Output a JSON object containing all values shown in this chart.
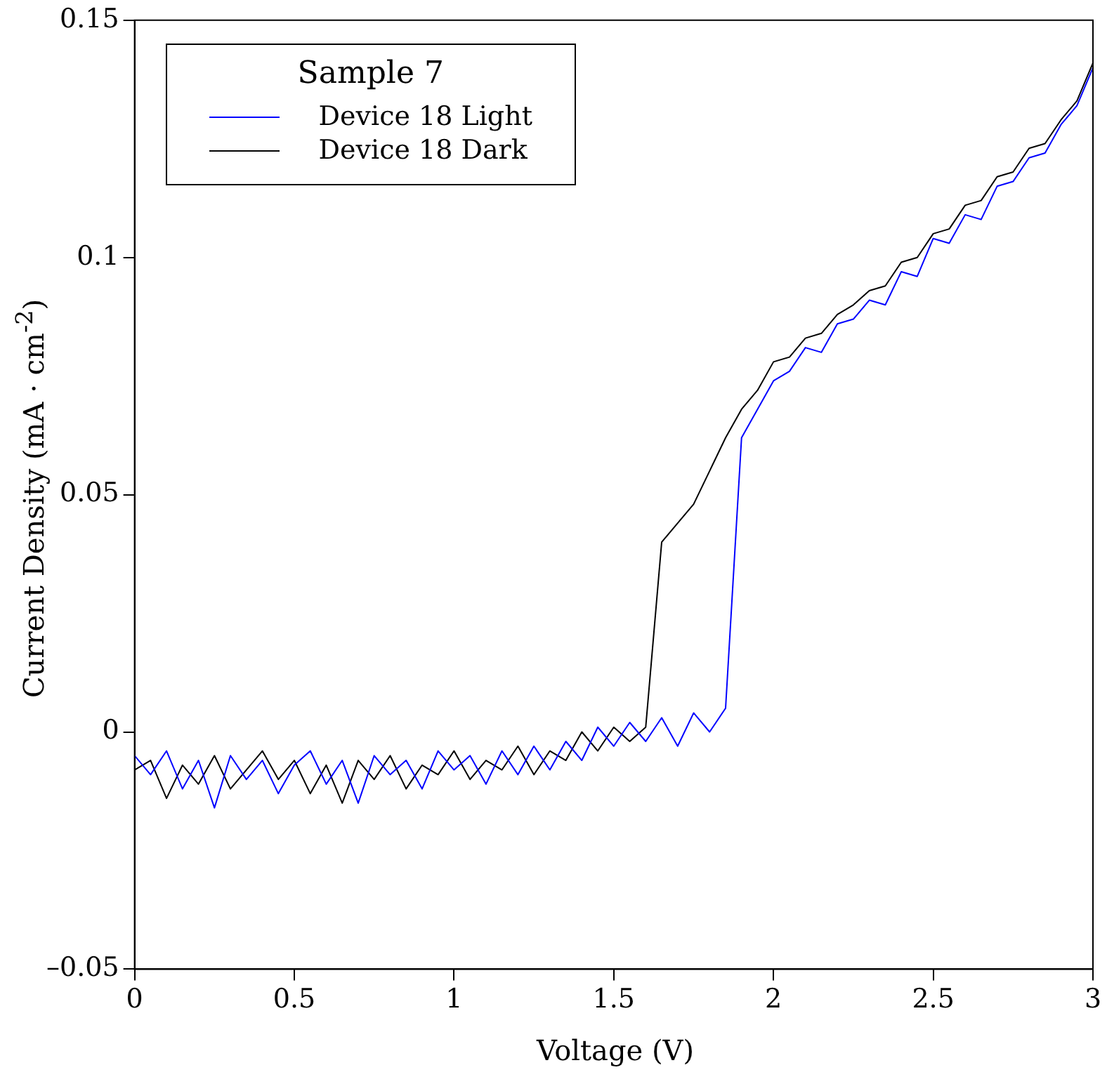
{
  "chart_data": {
    "type": "line",
    "xlabel": "Voltage (V)",
    "ylabel": "Current Density (mA · cm$^{-2}$)",
    "legend_title": "Sample 7",
    "legend": "top left",
    "grid": false,
    "marker": "none",
    "line_style": "solid",
    "xlim": [
      0,
      3
    ],
    "xticks": [
      0,
      0.5,
      1,
      1.5,
      2,
      2.5,
      3
    ],
    "ylim": [
      -0.05,
      0.15
    ],
    "yticks": [
      {
        "value": -0.05,
        "label": "–0.05"
      },
      0,
      0.05,
      0.1,
      0.15
    ],
    "x": [
      0,
      0.05,
      0.1,
      0.15,
      0.2,
      0.25,
      0.3,
      0.35,
      0.4,
      0.45,
      0.5,
      0.55,
      0.6,
      0.65,
      0.7,
      0.75,
      0.8,
      0.85,
      0.9,
      0.95,
      1,
      1.05,
      1.1,
      1.15,
      1.2,
      1.25,
      1.3,
      1.35,
      1.4,
      1.45,
      1.5,
      1.55,
      1.6,
      1.65,
      1.7,
      1.75,
      1.8,
      1.85,
      1.9,
      1.95,
      2,
      2.05,
      2.1,
      2.15,
      2.2,
      2.25,
      2.3,
      2.35,
      2.4,
      2.45,
      2.5,
      2.55,
      2.6,
      2.65,
      2.7,
      2.75,
      2.8,
      2.85,
      2.9,
      2.95,
      3
    ],
    "series": [
      {
        "name": "Device 18 Light",
        "color": "#0000ff",
        "values": [
          -0.005,
          -0.009,
          -0.004,
          -0.012,
          -0.006,
          -0.016,
          -0.005,
          -0.01,
          -0.006,
          -0.013,
          -0.007,
          -0.004,
          -0.011,
          -0.006,
          -0.015,
          -0.005,
          -0.009,
          -0.006,
          -0.012,
          -0.004,
          -0.008,
          -0.005,
          -0.011,
          -0.004,
          -0.009,
          -0.003,
          -0.008,
          -0.002,
          -0.006,
          0.001,
          -0.003,
          0.002,
          -0.002,
          0.003,
          -0.003,
          0.004,
          0,
          0.005,
          0.062,
          0.068,
          0.074,
          0.076,
          0.081,
          0.08,
          0.086,
          0.087,
          0.091,
          0.09,
          0.097,
          0.096,
          0.104,
          0.103,
          0.109,
          0.108,
          0.115,
          0.116,
          0.121,
          0.122,
          0.128,
          0.132,
          0.14
        ]
      },
      {
        "name": "Device 18 Dark",
        "color": "#000000",
        "values": [
          -0.008,
          -0.006,
          -0.014,
          -0.007,
          -0.011,
          -0.005,
          -0.012,
          -0.008,
          -0.004,
          -0.01,
          -0.006,
          -0.013,
          -0.007,
          -0.015,
          -0.006,
          -0.01,
          -0.005,
          -0.012,
          -0.007,
          -0.009,
          -0.004,
          -0.01,
          -0.006,
          -0.008,
          -0.003,
          -0.009,
          -0.004,
          -0.006,
          0,
          -0.004,
          0.001,
          -0.002,
          0.001,
          0.04,
          0.044,
          0.048,
          0.055,
          0.062,
          0.068,
          0.072,
          0.078,
          0.079,
          0.083,
          0.084,
          0.088,
          0.09,
          0.093,
          0.094,
          0.099,
          0.1,
          0.105,
          0.106,
          0.111,
          0.112,
          0.117,
          0.118,
          0.123,
          0.124,
          0.129,
          0.133,
          0.141
        ]
      }
    ]
  }
}
